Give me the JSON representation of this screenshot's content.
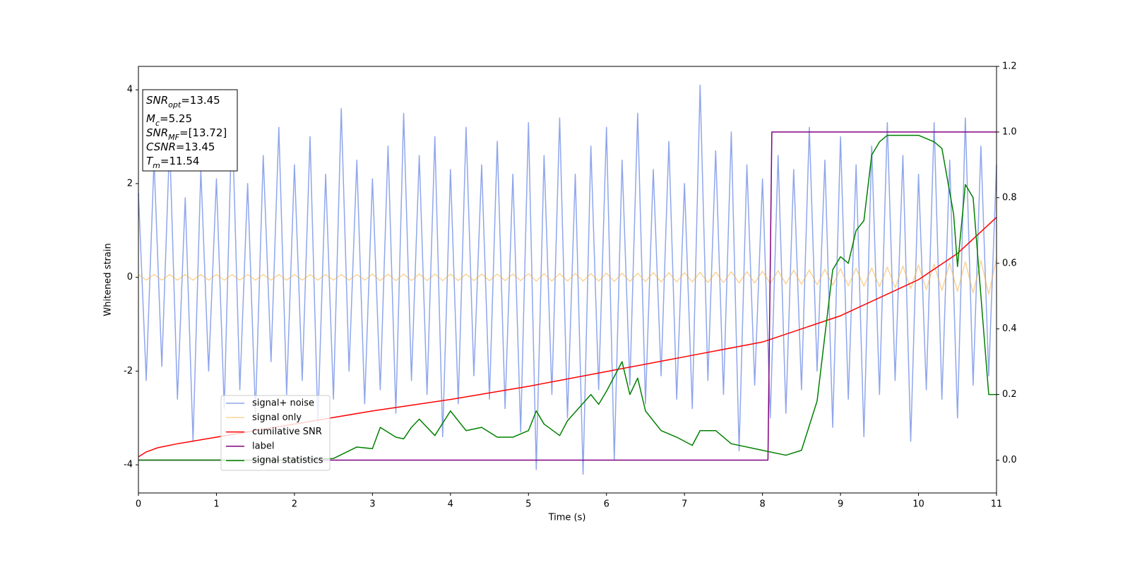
{
  "chart_data": {
    "type": "line",
    "xlabel": "Time (s)",
    "ylabel": "Whitened strain",
    "xlim": [
      0,
      11
    ],
    "xticks": [
      0,
      1,
      2,
      3,
      4,
      5,
      6,
      7,
      8,
      9,
      10,
      11
    ],
    "ylim": [
      -4.6,
      4.5
    ],
    "yticks": [
      -4,
      -2,
      0,
      2,
      4
    ],
    "y2lim": [
      -0.1,
      1.2
    ],
    "y2ticks": [
      {
        "value": 0,
        "label": "0.0"
      },
      0.2,
      0.4,
      0.6,
      0.8,
      {
        "value": 1,
        "label": "1.0"
      },
      1.2
    ],
    "annotations": [
      {
        "main": "SNR",
        "sub": "opt",
        "rest": "=13.45"
      },
      {
        "main": "M",
        "sub": "c",
        "rest": "=5.25"
      },
      {
        "main": "SNR",
        "sub": "MF",
        "rest": "=[13.72]"
      },
      {
        "main": "CSNR",
        "sub": null,
        "rest": "=13.45"
      },
      {
        "main": "T",
        "sub": "m",
        "rest": "=11.54"
      }
    ],
    "x": [
      0,
      0.1,
      0.2,
      0.3,
      0.4,
      0.5,
      0.6,
      0.7,
      0.8,
      0.9,
      1,
      1.1,
      1.2,
      1.3,
      1.4,
      1.5,
      1.6,
      1.7,
      1.8,
      1.9,
      2,
      2.1,
      2.2,
      2.3,
      2.4,
      2.5,
      2.6,
      2.7,
      2.8,
      2.9,
      3,
      3.1,
      3.2,
      3.3,
      3.4,
      3.5,
      3.6,
      3.7,
      3.8,
      3.9,
      4,
      4.1,
      4.2,
      4.3,
      4.4,
      4.5,
      4.6,
      4.7,
      4.8,
      4.9,
      5,
      5.1,
      5.2,
      5.3,
      5.4,
      5.5,
      5.6,
      5.7,
      5.8,
      5.9,
      6,
      6.1,
      6.2,
      6.3,
      6.4,
      6.5,
      6.6,
      6.7,
      6.8,
      6.9,
      7,
      7.1,
      7.2,
      7.3,
      7.4,
      7.5,
      7.6,
      7.7,
      7.8,
      7.9,
      8,
      8.1,
      8.2,
      8.3,
      8.4,
      8.5,
      8.6,
      8.7,
      8.8,
      8.9,
      9,
      9.1,
      9.2,
      9.3,
      9.4,
      9.5,
      9.6,
      9.7,
      9.8,
      9.9,
      10,
      10.1,
      10.2,
      10.3,
      10.4,
      10.5,
      10.6,
      10.7,
      10.8,
      10.9,
      11
    ],
    "series": [
      {
        "name": "signal+ noise",
        "color": "#7b96e8",
        "axis": "y",
        "values": [
          1.8,
          -2.2,
          2.5,
          -1.9,
          2.9,
          -2.6,
          1.7,
          -3.5,
          2.3,
          -2.0,
          2.1,
          -2.8,
          3.5,
          -2.4,
          2.0,
          -2.9,
          2.6,
          -1.8,
          3.2,
          -2.5,
          2.4,
          -2.2,
          3.0,
          -3.1,
          2.2,
          -2.6,
          3.6,
          -2.0,
          2.5,
          -2.7,
          2.1,
          -2.4,
          2.8,
          -2.9,
          3.5,
          -2.2,
          2.6,
          -2.5,
          3.0,
          -3.4,
          2.3,
          -2.7,
          3.2,
          -2.1,
          2.4,
          -2.6,
          2.9,
          -2.8,
          2.2,
          -3.3,
          3.3,
          -4.1,
          2.6,
          -2.5,
          3.4,
          -3.0,
          2.2,
          -4.2,
          2.8,
          -2.4,
          3.2,
          -3.9,
          2.5,
          -2.3,
          3.5,
          -2.7,
          2.3,
          -2.1,
          2.9,
          -2.6,
          2.0,
          -2.8,
          4.1,
          -2.2,
          2.7,
          -2.5,
          3.1,
          -3.7,
          2.4,
          -2.3,
          2.1,
          -3.0,
          2.6,
          -2.9,
          2.3,
          -2.4,
          3.2,
          -2.0,
          2.5,
          -3.2,
          3.0,
          -2.6,
          2.4,
          -3.4,
          2.8,
          -2.5,
          3.3,
          -2.2,
          2.6,
          -3.5,
          2.2,
          -2.4,
          3.3,
          -2.6,
          2.5,
          -3.0,
          3.4,
          -2.3,
          2.8,
          -2.1,
          2.4
        ]
      },
      {
        "name": "signal only",
        "color": "#f5b041",
        "axis": "y",
        "values": [
          0.06,
          -0.06,
          0.06,
          -0.06,
          0.06,
          -0.06,
          0.06,
          -0.06,
          0.06,
          -0.06,
          0.06,
          -0.06,
          0.06,
          -0.06,
          0.06,
          -0.06,
          0.06,
          -0.06,
          0.06,
          -0.06,
          0.06,
          -0.06,
          0.06,
          -0.06,
          0.06,
          -0.06,
          0.06,
          -0.06,
          0.06,
          -0.06,
          0.07,
          -0.07,
          0.07,
          -0.07,
          0.07,
          -0.07,
          0.07,
          -0.07,
          0.07,
          -0.07,
          0.07,
          -0.07,
          0.07,
          -0.07,
          0.07,
          -0.07,
          0.07,
          -0.07,
          0.07,
          -0.07,
          0.08,
          -0.08,
          0.08,
          -0.08,
          0.08,
          -0.08,
          0.08,
          -0.08,
          0.08,
          -0.08,
          0.09,
          -0.09,
          0.09,
          -0.09,
          0.09,
          -0.09,
          0.1,
          -0.1,
          0.1,
          -0.1,
          0.1,
          -0.1,
          0.11,
          -0.11,
          0.11,
          -0.11,
          0.12,
          -0.12,
          0.12,
          -0.12,
          0.13,
          -0.13,
          0.14,
          -0.14,
          0.15,
          -0.15,
          0.16,
          -0.16,
          0.17,
          -0.17,
          0.18,
          -0.18,
          0.19,
          -0.19,
          0.2,
          -0.2,
          0.22,
          -0.22,
          0.24,
          -0.24,
          0.26,
          -0.26,
          0.28,
          -0.28,
          0.3,
          -0.3,
          0.33,
          -0.33,
          0.36,
          -0.36,
          0.4
        ]
      },
      {
        "name": "cumilative SNR",
        "color": "#ff0000",
        "axis": "y2",
        "x": [
          0,
          0.1,
          0.25,
          0.5,
          1,
          2,
          3,
          4,
          5,
          6,
          7,
          8,
          9,
          10,
          10.5,
          11
        ],
        "values": [
          0.01,
          0.025,
          0.038,
          0.05,
          0.07,
          0.11,
          0.15,
          0.185,
          0.225,
          0.27,
          0.315,
          0.36,
          0.44,
          0.55,
          0.63,
          0.74
        ]
      },
      {
        "name": "label",
        "color": "#800080",
        "axis": "y2",
        "x": [
          0,
          8.07,
          8.12,
          11
        ],
        "values": [
          0,
          0,
          1,
          1
        ]
      },
      {
        "name": "signal statistics",
        "color": "#008000",
        "axis": "y2",
        "x": [
          0,
          2,
          2.5,
          2.8,
          3,
          3.1,
          3.3,
          3.4,
          3.5,
          3.6,
          3.8,
          4,
          4.2,
          4.4,
          4.6,
          4.8,
          5,
          5.1,
          5.2,
          5.4,
          5.5,
          5.8,
          5.9,
          6,
          6.2,
          6.3,
          6.4,
          6.5,
          6.7,
          6.9,
          7.1,
          7.2,
          7.4,
          7.6,
          8,
          8.3,
          8.5,
          8.7,
          8.8,
          8.9,
          9,
          9.1,
          9.2,
          9.3,
          9.4,
          9.5,
          9.6,
          10,
          10.2,
          10.3,
          10.45,
          10.5,
          10.6,
          10.7,
          10.8,
          10.9,
          11
        ],
        "values": [
          0,
          0,
          0.005,
          0.04,
          0.035,
          0.1,
          0.07,
          0.065,
          0.1,
          0.125,
          0.075,
          0.15,
          0.09,
          0.1,
          0.07,
          0.07,
          0.09,
          0.15,
          0.11,
          0.075,
          0.12,
          0.2,
          0.17,
          0.21,
          0.3,
          0.2,
          0.25,
          0.15,
          0.09,
          0.07,
          0.045,
          0.09,
          0.09,
          0.05,
          0.03,
          0.015,
          0.03,
          0.18,
          0.38,
          0.58,
          0.62,
          0.6,
          0.7,
          0.73,
          0.93,
          0.97,
          0.99,
          0.99,
          0.97,
          0.95,
          0.75,
          0.59,
          0.84,
          0.8,
          0.5,
          0.2,
          0.2
        ]
      }
    ]
  }
}
